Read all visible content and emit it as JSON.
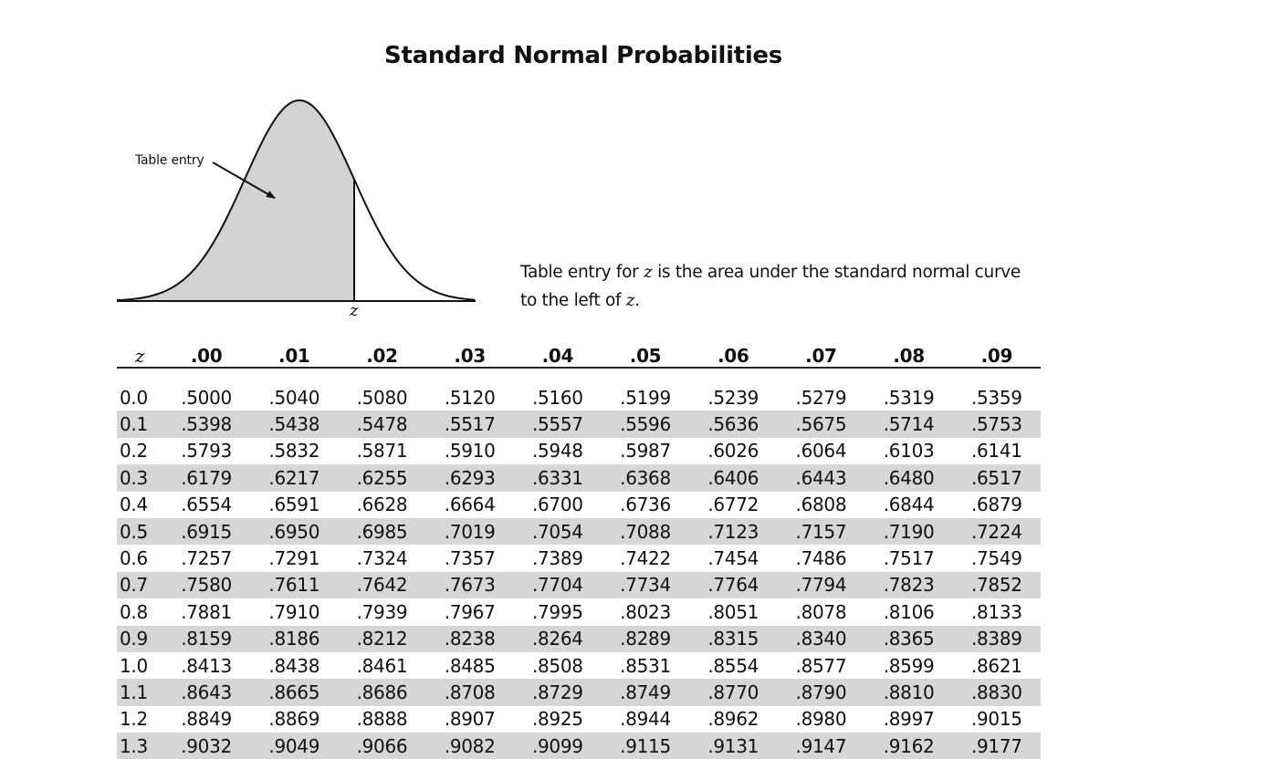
{
  "title": "Standard Normal Probabilities",
  "figure": {
    "entry_label": "Table entry",
    "z_label": "z",
    "fill_color": "#d3d3d3"
  },
  "caption": {
    "line1_prefix": "Table entry for ",
    "line1_var": "z",
    "line1_suffix": " is the area under the standard normal curve",
    "line2_prefix": "to the left of ",
    "line2_var": "z",
    "line2_suffix": "."
  },
  "table": {
    "header_z": "z",
    "columns": [
      ".00",
      ".01",
      ".02",
      ".03",
      ".04",
      ".05",
      ".06",
      ".07",
      ".08",
      ".09"
    ],
    "rows": [
      {
        "z": "0.0",
        "values": [
          ".5000",
          ".5040",
          ".5080",
          ".5120",
          ".5160",
          ".5199",
          ".5239",
          ".5279",
          ".5319",
          ".5359"
        ]
      },
      {
        "z": "0.1",
        "values": [
          ".5398",
          ".5438",
          ".5478",
          ".5517",
          ".5557",
          ".5596",
          ".5636",
          ".5675",
          ".5714",
          ".5753"
        ]
      },
      {
        "z": "0.2",
        "values": [
          ".5793",
          ".5832",
          ".5871",
          ".5910",
          ".5948",
          ".5987",
          ".6026",
          ".6064",
          ".6103",
          ".6141"
        ]
      },
      {
        "z": "0.3",
        "values": [
          ".6179",
          ".6217",
          ".6255",
          ".6293",
          ".6331",
          ".6368",
          ".6406",
          ".6443",
          ".6480",
          ".6517"
        ]
      },
      {
        "z": "0.4",
        "values": [
          ".6554",
          ".6591",
          ".6628",
          ".6664",
          ".6700",
          ".6736",
          ".6772",
          ".6808",
          ".6844",
          ".6879"
        ]
      },
      {
        "z": "0.5",
        "values": [
          ".6915",
          ".6950",
          ".6985",
          ".7019",
          ".7054",
          ".7088",
          ".7123",
          ".7157",
          ".7190",
          ".7224"
        ]
      },
      {
        "z": "0.6",
        "values": [
          ".7257",
          ".7291",
          ".7324",
          ".7357",
          ".7389",
          ".7422",
          ".7454",
          ".7486",
          ".7517",
          ".7549"
        ]
      },
      {
        "z": "0.7",
        "values": [
          ".7580",
          ".7611",
          ".7642",
          ".7673",
          ".7704",
          ".7734",
          ".7764",
          ".7794",
          ".7823",
          ".7852"
        ]
      },
      {
        "z": "0.8",
        "values": [
          ".7881",
          ".7910",
          ".7939",
          ".7967",
          ".7995",
          ".8023",
          ".8051",
          ".8078",
          ".8106",
          ".8133"
        ]
      },
      {
        "z": "0.9",
        "values": [
          ".8159",
          ".8186",
          ".8212",
          ".8238",
          ".8264",
          ".8289",
          ".8315",
          ".8340",
          ".8365",
          ".8389"
        ]
      },
      {
        "z": "1.0",
        "values": [
          ".8413",
          ".8438",
          ".8461",
          ".8485",
          ".8508",
          ".8531",
          ".8554",
          ".8577",
          ".8599",
          ".8621"
        ]
      },
      {
        "z": "1.1",
        "values": [
          ".8643",
          ".8665",
          ".8686",
          ".8708",
          ".8729",
          ".8749",
          ".8770",
          ".8790",
          ".8810",
          ".8830"
        ]
      },
      {
        "z": "1.2",
        "values": [
          ".8849",
          ".8869",
          ".8888",
          ".8907",
          ".8925",
          ".8944",
          ".8962",
          ".8980",
          ".8997",
          ".9015"
        ]
      },
      {
        "z": "1.3",
        "values": [
          ".9032",
          ".9049",
          ".9066",
          ".9082",
          ".9099",
          ".9115",
          ".9131",
          ".9147",
          ".9162",
          ".9177"
        ]
      }
    ]
  }
}
